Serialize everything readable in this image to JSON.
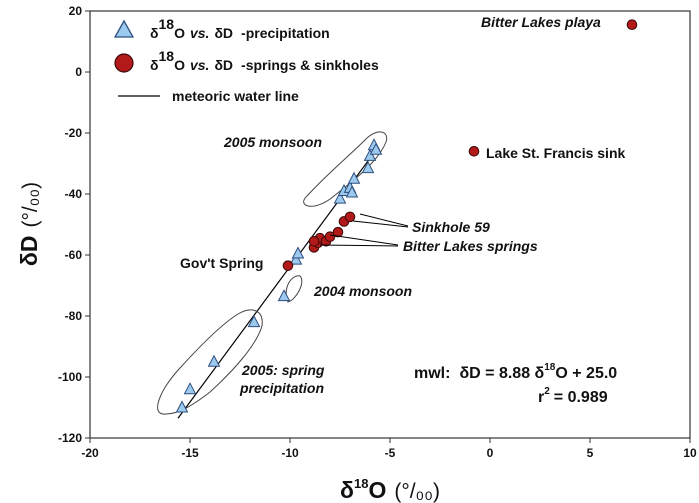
{
  "chart_data": {
    "type": "scatter",
    "xlim": [
      -20,
      10
    ],
    "ylim": [
      -120,
      20
    ],
    "x_ticks": [
      -20,
      -15,
      -10,
      -5,
      0,
      5,
      10
    ],
    "y_ticks": [
      20,
      0,
      -20,
      -40,
      -60,
      -80,
      -100,
      -120
    ],
    "x_tick_labels": [
      "-20",
      "-15",
      "-10",
      "-5",
      "0",
      "5",
      "10"
    ],
    "y_tick_labels": [
      "20",
      "0",
      "-20",
      "-40",
      "-60",
      "-80",
      "-100",
      "-120"
    ],
    "xlabel": {
      "base": "δ",
      "sup": "18",
      "main": "O",
      "units": "(°/₀₀)"
    },
    "ylabel": {
      "base": "δD",
      "units": "(°/₀₀)"
    },
    "grid": false,
    "legend_position": "top-left",
    "legend": [
      {
        "marker": "triangle",
        "pre": "δ",
        "sup": "18",
        "main": "O",
        "vs": "vs.",
        "second": "δD",
        "suffix": "-precipitation",
        "color": "#9cc9ee"
      },
      {
        "marker": "circle",
        "pre": "δ",
        "sup": "18",
        "main": "O",
        "vs": "vs.",
        "second": "δD",
        "suffix": "-springs & sinkholes",
        "color": "#b21a1a"
      },
      {
        "marker": "line",
        "label": "meteoric water line",
        "color": "#000000"
      }
    ],
    "series": [
      {
        "marker": "triangle",
        "color": "#9cc9ee",
        "points": [
          [
            -15.4,
            -110
          ],
          [
            -15.0,
            -104
          ],
          [
            -13.8,
            -95
          ],
          [
            -11.8,
            -82
          ],
          [
            -10.3,
            -73.5
          ],
          [
            -9.7,
            -61.5
          ],
          [
            -9.6,
            -59.5
          ],
          [
            -7.5,
            -41.5
          ],
          [
            -7.3,
            -39
          ],
          [
            -7.0,
            -38
          ],
          [
            -6.8,
            -35
          ],
          [
            -6.9,
            -39.5
          ],
          [
            -6.1,
            -31.5
          ],
          [
            -6.0,
            -27.5
          ],
          [
            -5.8,
            -24
          ],
          [
            -5.7,
            -25.5
          ]
        ]
      },
      {
        "marker": "circle",
        "color": "#b21a1a",
        "points": [
          [
            -10.1,
            -63.5
          ],
          [
            -8.8,
            -57.5
          ],
          [
            -8.6,
            -56
          ],
          [
            -8.5,
            -54.5
          ],
          [
            -8.8,
            -55.5
          ],
          [
            -8.2,
            -55.5
          ],
          [
            -8.0,
            -54
          ],
          [
            -7.6,
            -52.5
          ],
          [
            -7.3,
            -49
          ],
          [
            -7.0,
            -47.5
          ],
          [
            -0.8,
            -26
          ],
          [
            7.1,
            15.5
          ]
        ]
      }
    ],
    "mwl": {
      "slope": 8.88,
      "intercept": 25.0,
      "x_range": [
        -15.6,
        -5.6
      ]
    },
    "equation": {
      "prefix": "mwl:",
      "lhs": "δD = 8.88 δ",
      "sup": "18",
      "rhs": "O + 25.0"
    },
    "r2": {
      "label": "r",
      "sup": "2",
      "value": "= 0.989"
    },
    "annotations": {
      "bitter_playa": "Bitter Lakes playa",
      "st_francis": "Lake St. Francis sink",
      "monsoon_2005": "2005 monsoon",
      "sinkhole": "Sinkhole 59",
      "bitter_springs": "Bitter Lakes springs",
      "govt_spring": "Gov't Spring",
      "monsoon_2004": "2004 monsoon",
      "spring_precip_1": "2005: spring",
      "spring_precip_2": "precipitation"
    }
  }
}
